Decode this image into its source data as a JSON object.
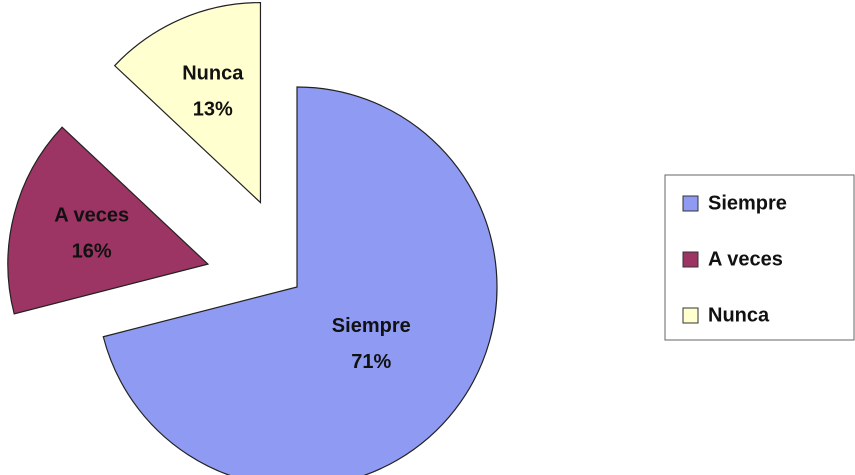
{
  "chart_data": {
    "type": "pie",
    "categories": [
      "Siempre",
      "A veces",
      "Nunca"
    ],
    "values": [
      71,
      16,
      13
    ],
    "value_labels": [
      "71%",
      "16%",
      "13%"
    ],
    "colors": [
      "#8f9bf2",
      "#9c3464",
      "#ffffd0"
    ],
    "legend": "right"
  }
}
